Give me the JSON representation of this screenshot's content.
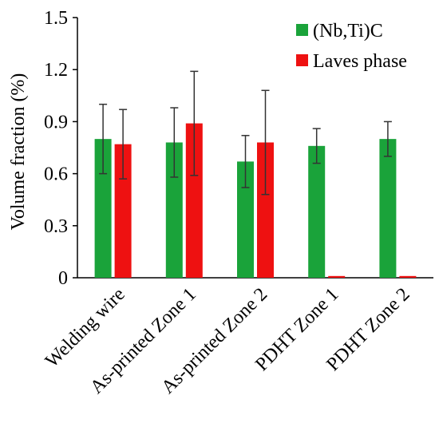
{
  "chart_data": {
    "type": "bar",
    "title": "",
    "xlabel": "",
    "ylabel": "Volume fraction (%)",
    "ylim": [
      0,
      1.5
    ],
    "yticks": [
      "0",
      "0.3",
      "0.6",
      "0.9",
      "1.2",
      "1.5"
    ],
    "grid": false,
    "legend_position": "top-right",
    "categories": [
      "Welding wire",
      "As-printed Zone 1",
      "As-printed Zone 2",
      "PDHT Zone 1",
      "PDHT Zone 2"
    ],
    "series": [
      {
        "name": "(Nb,Ti)C",
        "color": "#1aa33a",
        "values": [
          0.8,
          0.78,
          0.67,
          0.76,
          0.8
        ],
        "errors": [
          0.2,
          0.2,
          0.15,
          0.1,
          0.1
        ]
      },
      {
        "name": "Laves phase",
        "color": "#ee1111",
        "values": [
          0.77,
          0.89,
          0.78,
          0.01,
          0.01
        ],
        "errors": [
          0.2,
          0.3,
          0.3,
          0.0,
          0.0
        ]
      }
    ]
  }
}
